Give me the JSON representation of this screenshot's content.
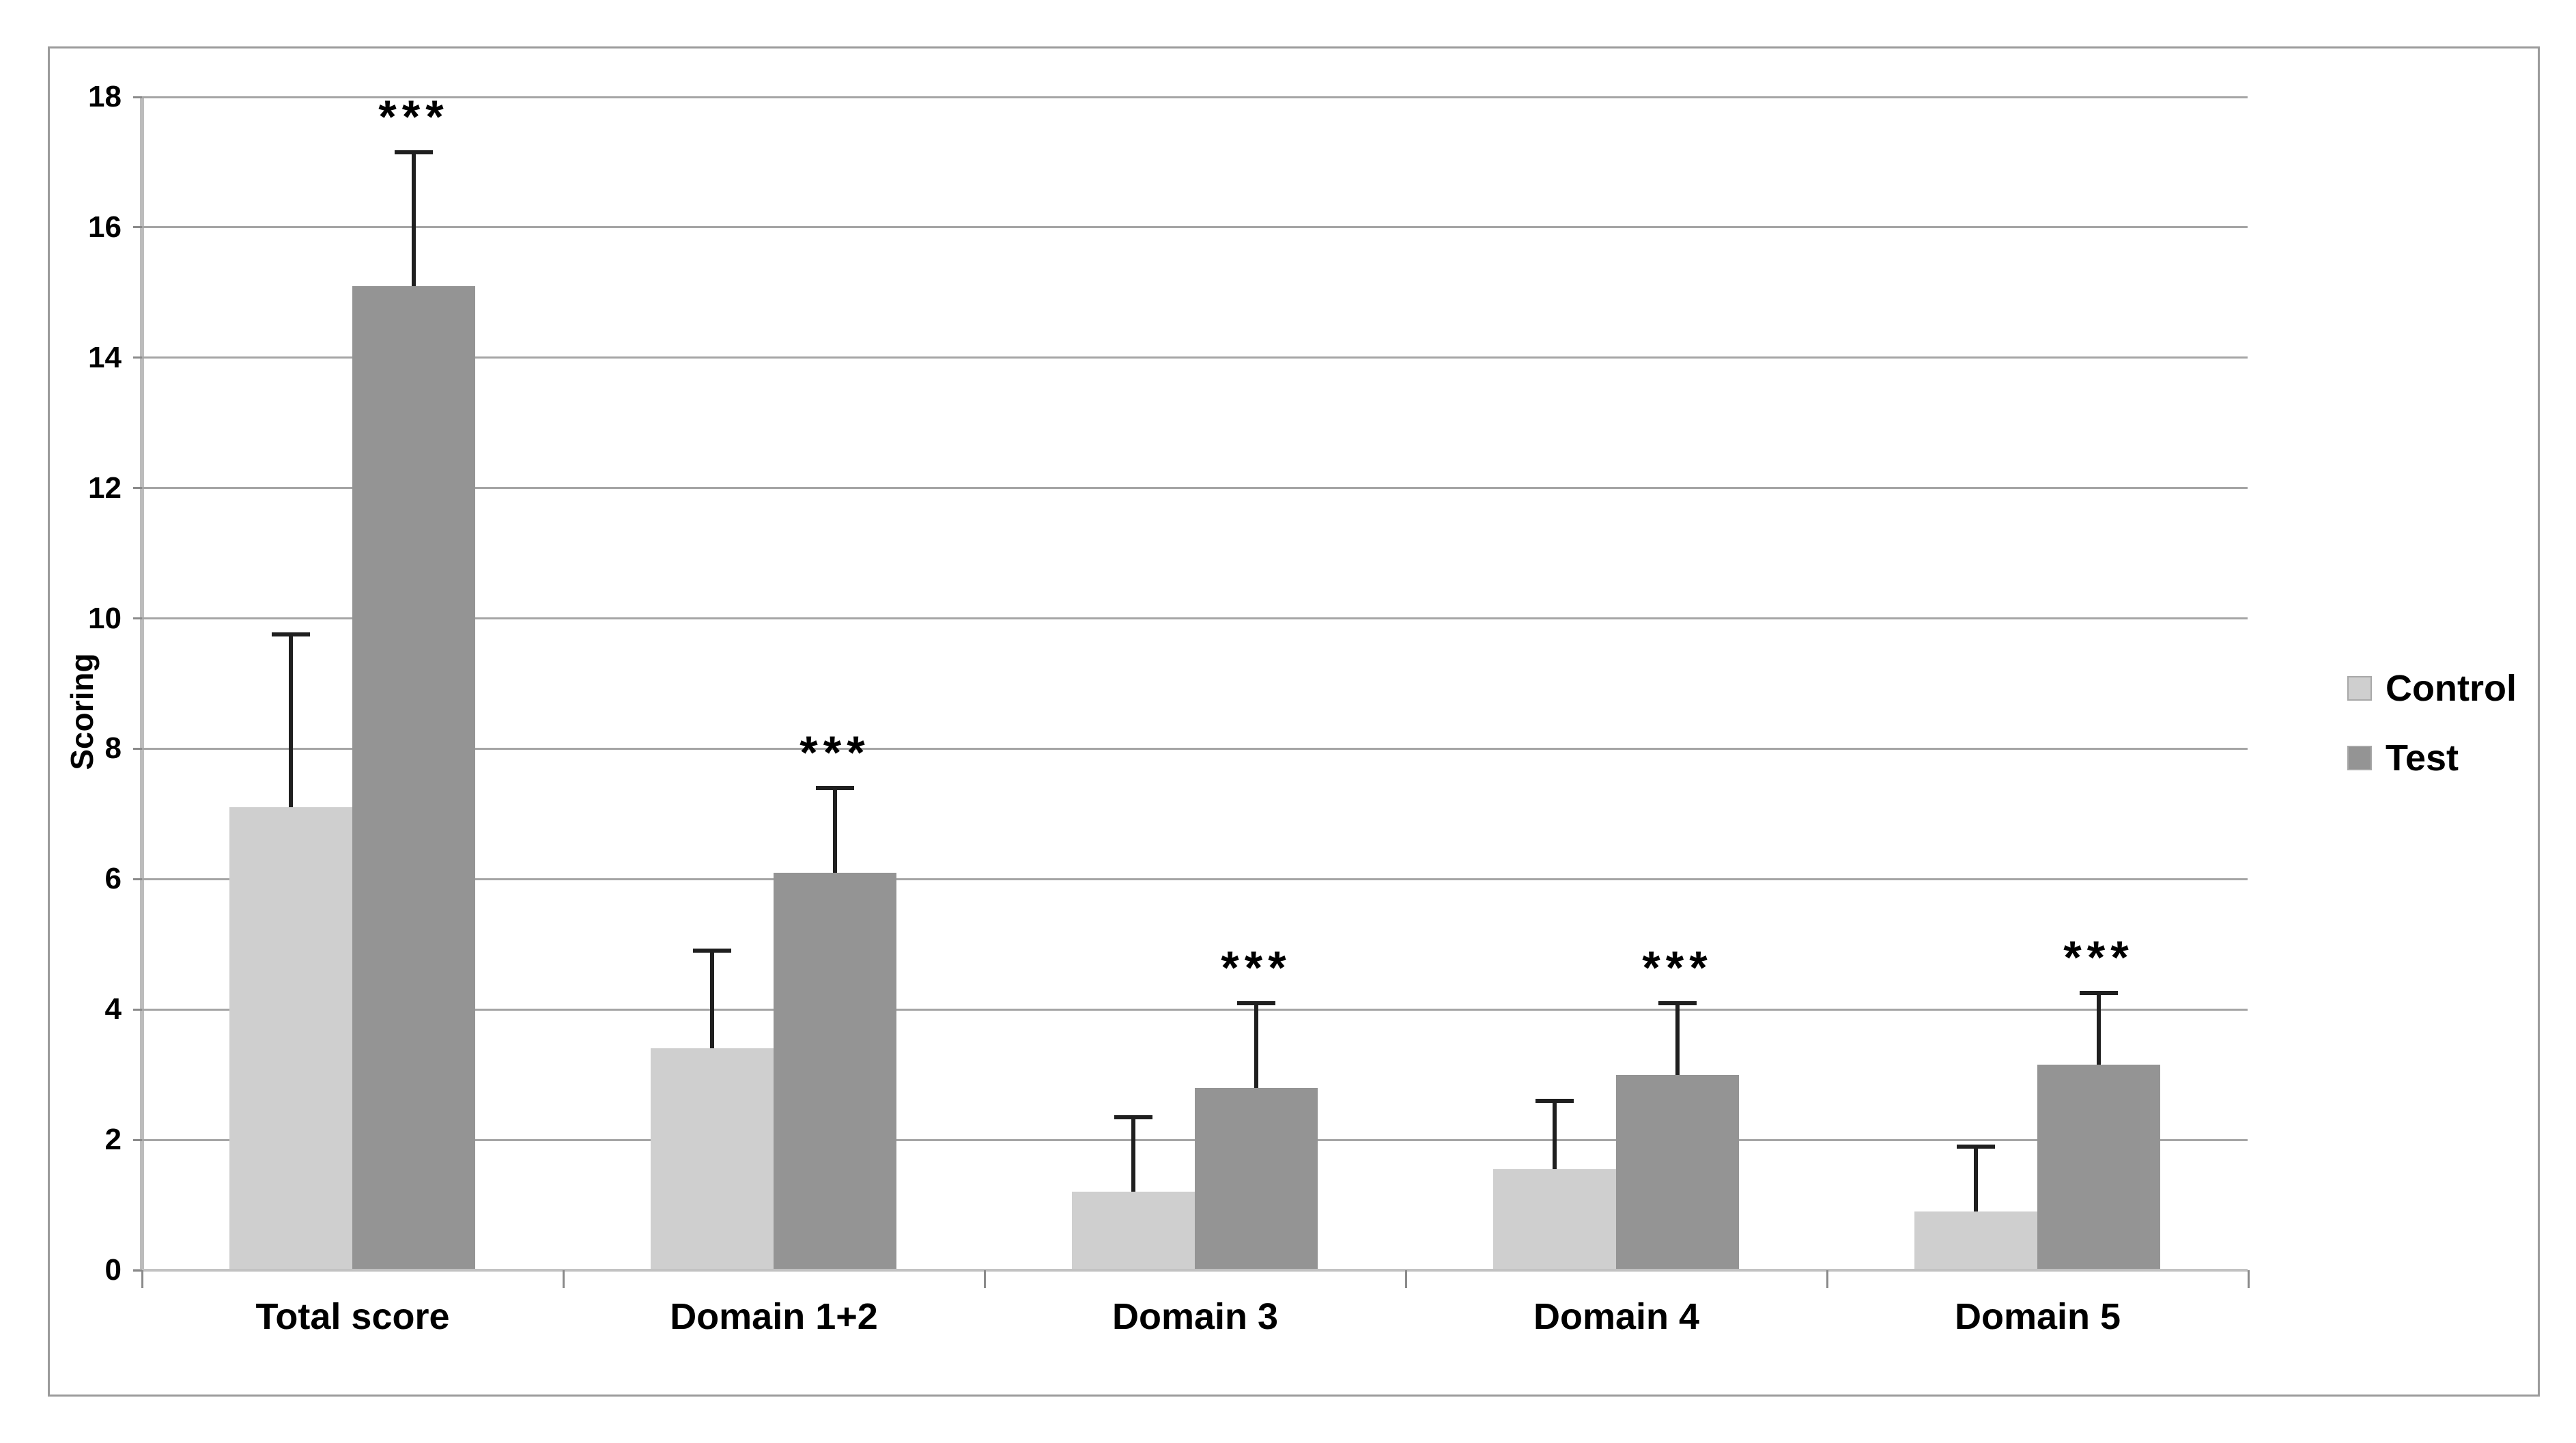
{
  "figure": {
    "background": "#ffffff",
    "border_color": "#9b9b9b",
    "gridline_color": "#a5a5a5",
    "error_bar_color": "#1f1f1f"
  },
  "chart_data": {
    "type": "bar",
    "title": "",
    "xlabel": "",
    "ylabel": "Scoring",
    "categories": [
      "Total score",
      "Domain 1+2",
      "Domain 3",
      "Domain 4",
      "Domain 5"
    ],
    "series": [
      {
        "name": "Control",
        "color": "#cfcfcf",
        "values": [
          7.1,
          3.4,
          1.2,
          1.55,
          0.9
        ],
        "errors_up": [
          2.65,
          1.5,
          1.15,
          1.05,
          1.0
        ]
      },
      {
        "name": "Test",
        "color": "#949494",
        "values": [
          15.1,
          6.1,
          2.8,
          3.0,
          3.15
        ],
        "errors_up": [
          2.05,
          1.3,
          1.3,
          1.1,
          1.1
        ],
        "significance": [
          "***",
          "***",
          "***",
          "***",
          "***"
        ]
      }
    ],
    "ylim": [
      0,
      18
    ],
    "yticks": [
      0,
      2,
      4,
      6,
      8,
      10,
      12,
      14,
      16,
      18
    ],
    "grid": true,
    "legend_position": "right"
  }
}
